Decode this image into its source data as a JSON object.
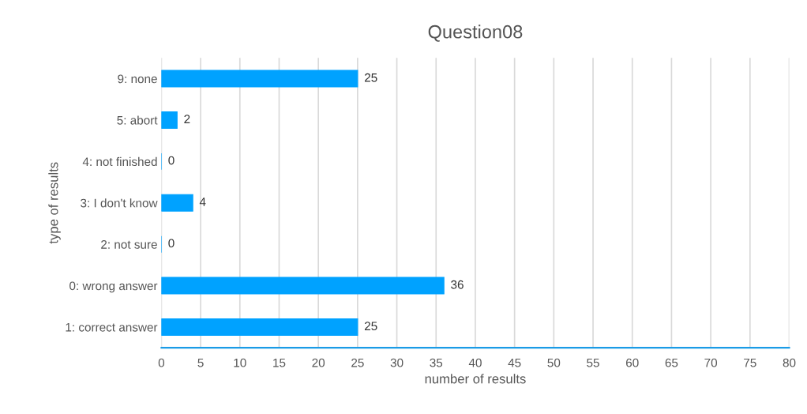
{
  "chart_data": {
    "type": "bar",
    "orientation": "horizontal",
    "title": "Question08",
    "xlabel": "number of results",
    "ylabel": "type of results",
    "categories": [
      "9: none",
      "5: abort",
      "4: not finished",
      "3: I don't know",
      "2: not sure",
      "0: wrong answer",
      "1: correct answer"
    ],
    "values": [
      25,
      2,
      0,
      4,
      0,
      36,
      25
    ],
    "color": "#00a2ff",
    "xlim": [
      0,
      80
    ],
    "xticks": [
      0,
      5,
      10,
      15,
      20,
      25,
      30,
      35,
      40,
      45,
      50,
      55,
      60,
      65,
      70,
      75,
      80
    ],
    "grid": "x",
    "data_labels": true,
    "legend": false
  }
}
